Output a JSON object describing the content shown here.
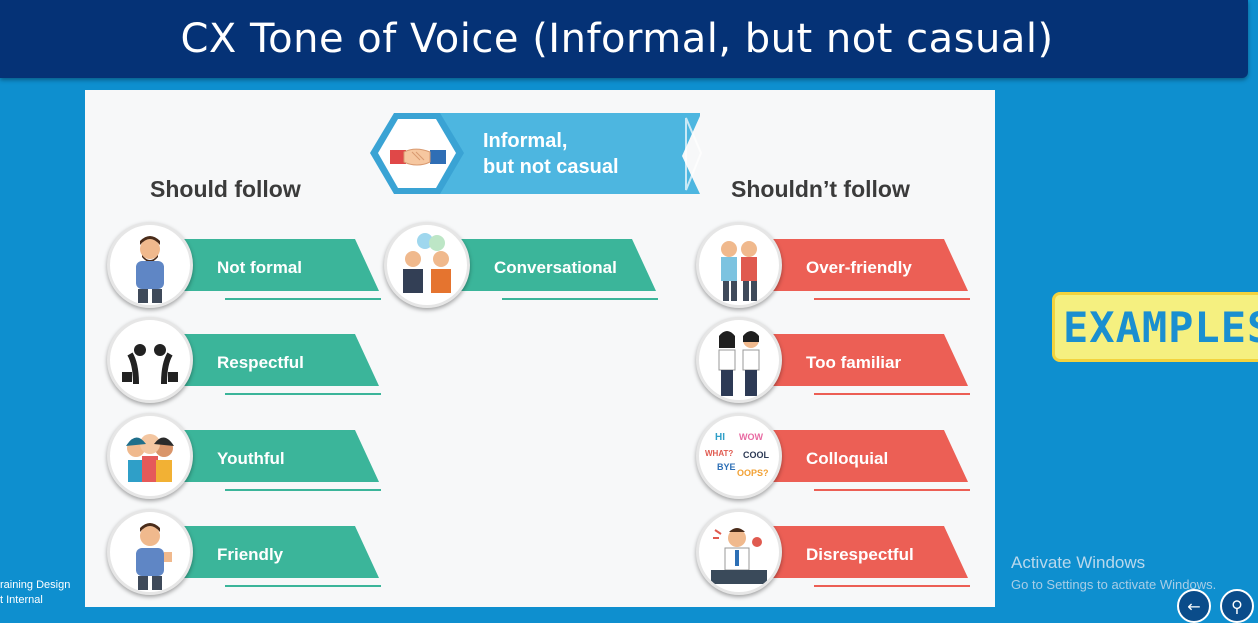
{
  "title": "CX Tone of Voice (Informal, but not casual)",
  "colors": {
    "background": "#0e8fcf",
    "title_bar": "#053276",
    "teal": "#3bb59a",
    "coral": "#ec5f55",
    "banner": "#4db6e0",
    "examples_bg": "#f5f080",
    "examples_text": "#1a8fd0"
  },
  "slide": {
    "banner": {
      "line1": "Informal,",
      "line2": "but not casual",
      "icon": "handshake-icon"
    },
    "should_heading": "Should follow",
    "shouldnt_heading": "Shouldn’t follow",
    "should": [
      {
        "label": "Not formal",
        "icon": "casual-man-icon"
      },
      {
        "label": "Respectful",
        "icon": "bowing-businessmen-icon"
      },
      {
        "label": "Youthful",
        "icon": "young-group-icon"
      },
      {
        "label": "Friendly",
        "icon": "thumbs-up-man-icon"
      }
    ],
    "middle": [
      {
        "label": "Conversational",
        "icon": "two-people-chat-icon"
      }
    ],
    "shouldnt": [
      {
        "label": "Over-friendly",
        "icon": "buddies-icon"
      },
      {
        "label": "Too familiar",
        "icon": "holding-hands-icon"
      },
      {
        "label": "Colloquial",
        "icon": "slang-words-icon",
        "words": [
          "HI",
          "WOW",
          "WHAT?",
          "COOL",
          "BYE",
          "OOPS?"
        ]
      },
      {
        "label": "Disrespectful",
        "icon": "shouting-man-icon"
      }
    ]
  },
  "examples_button": "EXAMPLES",
  "watermark": {
    "title": "Activate Windows",
    "subtitle": "Go to Settings to activate Windows."
  },
  "footer": {
    "line1": "raining Design",
    "line2": "t Internal"
  }
}
